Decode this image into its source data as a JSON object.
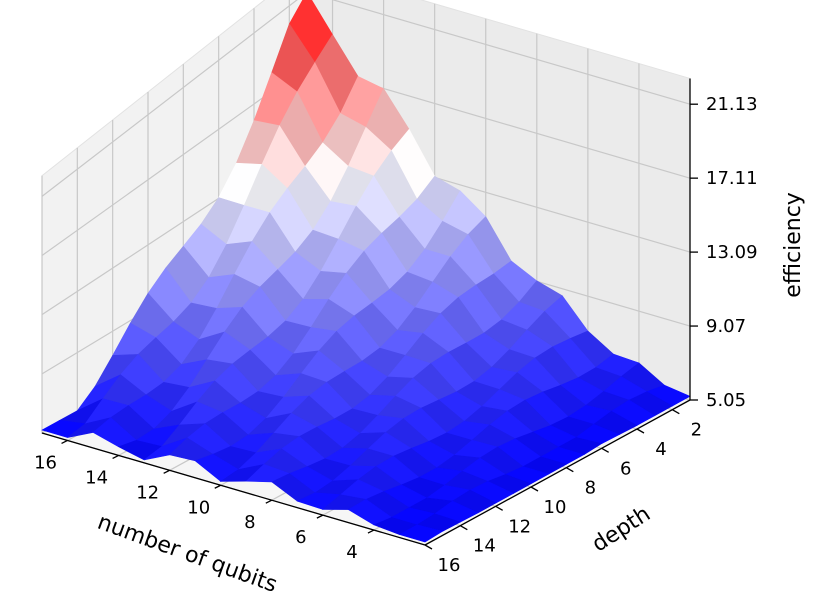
{
  "chart_data": {
    "type": "surface3d",
    "title": "",
    "xlabel": "number of qubits",
    "ylabel": "depth",
    "zlabel": "efficiency",
    "x_ticks": [
      "16",
      "14",
      "12",
      "10",
      "8",
      "6",
      "4"
    ],
    "y_ticks": [
      "2",
      "4",
      "6",
      "8",
      "10",
      "12",
      "14",
      "16"
    ],
    "z_ticks": [
      "5.05",
      "9.07",
      "13.09",
      "17.11",
      "21.13"
    ],
    "xlim": [
      2,
      17
    ],
    "ylim": [
      1,
      16
    ],
    "zlim": [
      5.05,
      21.13
    ],
    "colormap": [
      "#0000ff",
      "#ffffff",
      "#ff0000"
    ],
    "grid": true,
    "description_of_shape": "peak at 17 qubits, depth 1; decreases toward few qubits and high depth",
    "peak": {
      "qubits": 17,
      "depth": 1,
      "efficiency": 21.13
    },
    "qubits": [
      2,
      3,
      4,
      5,
      6,
      7,
      8,
      9,
      10,
      11,
      12,
      13,
      14,
      15,
      16,
      17
    ],
    "depth": [
      1,
      2,
      3,
      4,
      5,
      6,
      7,
      8,
      9,
      10,
      11,
      12,
      13,
      14,
      15,
      16
    ]
  }
}
